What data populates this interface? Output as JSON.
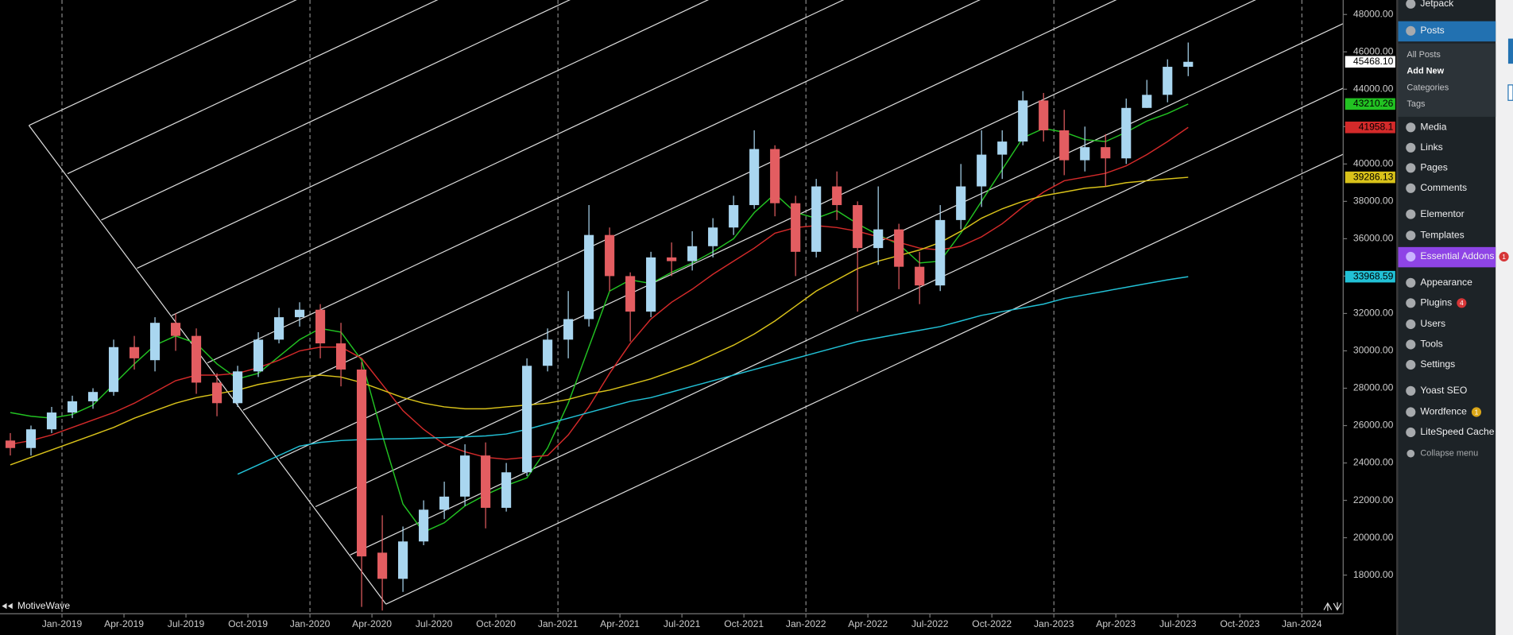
{
  "chart_data": {
    "type": "candlestick",
    "watermark": "MotiveWave",
    "x": [
      "2018-10",
      "2018-11",
      "2018-12",
      "2019-01",
      "2019-02",
      "2019-03",
      "2019-04",
      "2019-05",
      "2019-06",
      "2019-07",
      "2019-08",
      "2019-09",
      "2019-10",
      "2019-11",
      "2019-12",
      "2020-01",
      "2020-02",
      "2020-03",
      "2020-04",
      "2020-05",
      "2020-06",
      "2020-07",
      "2020-08",
      "2020-09",
      "2020-10",
      "2020-11",
      "2020-12",
      "2021-01",
      "2021-02",
      "2021-03",
      "2021-04",
      "2021-05",
      "2021-06",
      "2021-07",
      "2021-08",
      "2021-09",
      "2021-10",
      "2021-11",
      "2021-12",
      "2022-01",
      "2022-02",
      "2022-03",
      "2022-04",
      "2022-05",
      "2022-06",
      "2022-07",
      "2022-08",
      "2022-09",
      "2022-10",
      "2022-11",
      "2022-12",
      "2023-01",
      "2023-02",
      "2023-03",
      "2023-04",
      "2023-05",
      "2023-06",
      "2023-07"
    ],
    "open": [
      25200,
      24800,
      25800,
      26700,
      27300,
      27800,
      30200,
      29500,
      31500,
      30800,
      28300,
      27200,
      28900,
      30600,
      31800,
      32200,
      30400,
      29000,
      19200,
      17800,
      19800,
      21500,
      22200,
      24400,
      21600,
      23500,
      29200,
      30600,
      31700,
      36200,
      34000,
      32100,
      35000,
      34800,
      35600,
      36600,
      37800,
      40800,
      37900,
      35300,
      38800,
      37800,
      35500,
      36500,
      34500,
      33500,
      37000,
      38800,
      40500,
      41200,
      43400,
      41800,
      40200,
      40900,
      40300,
      43000,
      43700,
      45200
    ],
    "high": [
      25600,
      26000,
      27000,
      27600,
      28000,
      30600,
      30800,
      31800,
      32000,
      31200,
      28800,
      29200,
      31000,
      32300,
      32600,
      32500,
      31500,
      29400,
      21200,
      20600,
      22000,
      23000,
      25000,
      25100,
      24000,
      29600,
      31200,
      33200,
      37800,
      36600,
      34200,
      35300,
      35800,
      36400,
      37100,
      38300,
      41800,
      41000,
      38300,
      39200,
      39600,
      38000,
      38800,
      36800,
      35300,
      37800,
      40000,
      41800,
      41800,
      43900,
      43800,
      42900,
      42000,
      41600,
      43500,
      44500,
      45600,
      46500
    ],
    "low": [
      24400,
      24400,
      25600,
      26400,
      26900,
      27600,
      29000,
      28900,
      30000,
      27700,
      26500,
      27000,
      28600,
      30400,
      31300,
      29600,
      28100,
      16300,
      16100,
      17100,
      19600,
      21000,
      21700,
      20500,
      21400,
      23300,
      28900,
      29600,
      31300,
      33200,
      30500,
      31800,
      34000,
      34300,
      35000,
      36200,
      37600,
      37200,
      34000,
      35000,
      37000,
      32100,
      34600,
      33300,
      32500,
      33200,
      36500,
      37700,
      39200,
      41000,
      41200,
      39400,
      39600,
      38800,
      40000,
      43000,
      43300,
      44700
    ],
    "close": [
      24800,
      25800,
      26700,
      27300,
      27800,
      30200,
      29600,
      31500,
      30800,
      28300,
      27200,
      28900,
      30600,
      31800,
      32200,
      30400,
      29000,
      19000,
      17800,
      19800,
      21500,
      22200,
      24400,
      21600,
      23500,
      29200,
      30600,
      31700,
      36200,
      34000,
      32100,
      35000,
      34800,
      35600,
      36600,
      37800,
      40800,
      37900,
      35300,
      38800,
      37800,
      35500,
      36500,
      34500,
      33500,
      37000,
      38800,
      40500,
      41200,
      43400,
      41800,
      40200,
      40900,
      40300,
      43000,
      43700,
      45200,
      45468.1
    ],
    "last_close_label": "45468.10",
    "up_color": "#a9d6f0",
    "down_color": "#e35d61",
    "lines": [
      {
        "color": "#22c222",
        "values": [
          26700,
          26500,
          26400,
          26600,
          27100,
          28200,
          29300,
          30300,
          30800,
          30400,
          29300,
          28500,
          28800,
          29700,
          30600,
          31200,
          31000,
          29500,
          25500,
          21800,
          20300,
          20800,
          21700,
          22300,
          22800,
          23200,
          24800,
          27200,
          30200,
          33200,
          33800,
          33600,
          34200,
          34700,
          35300,
          36000,
          37400,
          38400,
          37400,
          37100,
          37500,
          36800,
          36200,
          35700,
          34700,
          34800,
          36300,
          38000,
          39700,
          41400,
          41900,
          41700,
          41300,
          41200,
          41700,
          42300,
          42700,
          43210.26
        ]
      },
      {
        "color": "#d42a2a",
        "values": [
          25000,
          25200,
          25500,
          25900,
          26300,
          26700,
          27200,
          27800,
          28400,
          28700,
          28700,
          28800,
          29100,
          29500,
          30000,
          30200,
          30200,
          29600,
          28200,
          26800,
          25800,
          25000,
          24600,
          24300,
          24200,
          24300,
          24400,
          25500,
          27000,
          28800,
          30400,
          31700,
          32600,
          33300,
          34100,
          34800,
          35500,
          36300,
          36600,
          36700,
          36600,
          36400,
          36100,
          35800,
          35500,
          35400,
          35600,
          36100,
          36800,
          37700,
          38500,
          39100,
          39300,
          39500,
          39900,
          40500,
          41200,
          41958.1
        ]
      },
      {
        "color": "#d9c21a",
        "values": [
          23900,
          24300,
          24700,
          25100,
          25500,
          25900,
          26400,
          26800,
          27200,
          27500,
          27700,
          27900,
          28200,
          28400,
          28600,
          28700,
          28600,
          28300,
          27900,
          27500,
          27200,
          27000,
          26900,
          26900,
          27000,
          27100,
          27200,
          27400,
          27700,
          27900,
          28200,
          28500,
          28900,
          29300,
          29800,
          30300,
          30900,
          31600,
          32400,
          33200,
          33800,
          34400,
          34800,
          35100,
          35400,
          35800,
          36400,
          37100,
          37600,
          38000,
          38300,
          38500,
          38700,
          38800,
          39000,
          39100,
          39200,
          39286.13
        ]
      },
      {
        "color": "#22c1d6",
        "values": [
          null,
          null,
          null,
          null,
          null,
          null,
          null,
          null,
          null,
          null,
          null,
          23400,
          23900,
          24400,
          24900,
          25100,
          25200,
          25250,
          25280,
          25300,
          25330,
          25360,
          25400,
          25450,
          25550,
          25800,
          26100,
          26400,
          26700,
          27000,
          27300,
          27500,
          27800,
          28100,
          28400,
          28700,
          29000,
          29300,
          29600,
          29900,
          30200,
          30500,
          30700,
          30900,
          31100,
          31300,
          31600,
          31900,
          32100,
          32300,
          32500,
          32800,
          33000,
          33200,
          33400,
          33600,
          33800,
          33968.59
        ]
      }
    ],
    "xlim": [
      "2018-10",
      "2024-02"
    ],
    "xticks": [
      {
        "value": "2019-01",
        "label": "Jan-2019"
      },
      {
        "value": "2019-04",
        "label": "Apr-2019"
      },
      {
        "value": "2019-07",
        "label": "Jul-2019"
      },
      {
        "value": "2019-10",
        "label": "Oct-2019"
      },
      {
        "value": "2020-01",
        "label": "Jan-2020"
      },
      {
        "value": "2020-04",
        "label": "Apr-2020"
      },
      {
        "value": "2020-07",
        "label": "Jul-2020"
      },
      {
        "value": "2020-10",
        "label": "Oct-2020"
      },
      {
        "value": "2021-01",
        "label": "Jan-2021"
      },
      {
        "value": "2021-04",
        "label": "Apr-2021"
      },
      {
        "value": "2021-07",
        "label": "Jul-2021"
      },
      {
        "value": "2021-10",
        "label": "Oct-2021"
      },
      {
        "value": "2022-01",
        "label": "Jan-2022"
      },
      {
        "value": "2022-04",
        "label": "Apr-2022"
      },
      {
        "value": "2022-07",
        "label": "Jul-2022"
      },
      {
        "value": "2022-10",
        "label": "Oct-2022"
      },
      {
        "value": "2023-01",
        "label": "Jan-2023"
      },
      {
        "value": "2023-04",
        "label": "Apr-2023"
      },
      {
        "value": "2023-07",
        "label": "Jul-2023"
      },
      {
        "value": "2023-10",
        "label": "Oct-2023"
      },
      {
        "value": "2024-01",
        "label": "Jan-2024"
      }
    ],
    "ylim": [
      15930,
      48775
    ],
    "yticks": [
      {
        "value": 18000,
        "label": "18000.00"
      },
      {
        "value": 20000,
        "label": "20000.00"
      },
      {
        "value": 22000,
        "label": "22000.00"
      },
      {
        "value": 24000,
        "label": "24000.00"
      },
      {
        "value": 26000,
        "label": "26000.00"
      },
      {
        "value": 28000,
        "label": "28000.00"
      },
      {
        "value": 30000,
        "label": "30000.00"
      },
      {
        "value": 32000,
        "label": "32000.00"
      },
      {
        "value": 34000,
        "label": "34000.00"
      },
      {
        "value": 36000,
        "label": "36000.00"
      },
      {
        "value": 38000,
        "label": "38000.00"
      },
      {
        "value": 40000,
        "label": "40000.00"
      },
      {
        "value": 42000,
        "label": "42000.00"
      },
      {
        "value": 44000,
        "label": "44000.00"
      },
      {
        "value": 46000,
        "label": "46000.00"
      },
      {
        "value": 48000,
        "label": "48000.00"
      }
    ],
    "year_grid": true
  },
  "sidebar": {
    "items": [
      {
        "label": "Jetpack"
      },
      {
        "label": "Posts",
        "current": true
      },
      {
        "label": "Media"
      },
      {
        "label": "Links"
      },
      {
        "label": "Pages"
      },
      {
        "label": "Comments"
      },
      {
        "label": "Elementor"
      },
      {
        "label": "Templates"
      },
      {
        "label": "Essential Addons",
        "badge": "1",
        "highlight": true
      },
      {
        "label": "Appearance"
      },
      {
        "label": "Plugins",
        "badge": "4"
      },
      {
        "label": "Users"
      },
      {
        "label": "Tools"
      },
      {
        "label": "Settings"
      },
      {
        "label": "Yoast SEO"
      },
      {
        "label": "Wordfence",
        "badge": "1"
      },
      {
        "label": "LiteSpeed Cache"
      },
      {
        "label": "Collapse menu",
        "small": true
      }
    ],
    "submenu": [
      "All Posts",
      "Add New",
      "Categories",
      "Tags"
    ]
  }
}
